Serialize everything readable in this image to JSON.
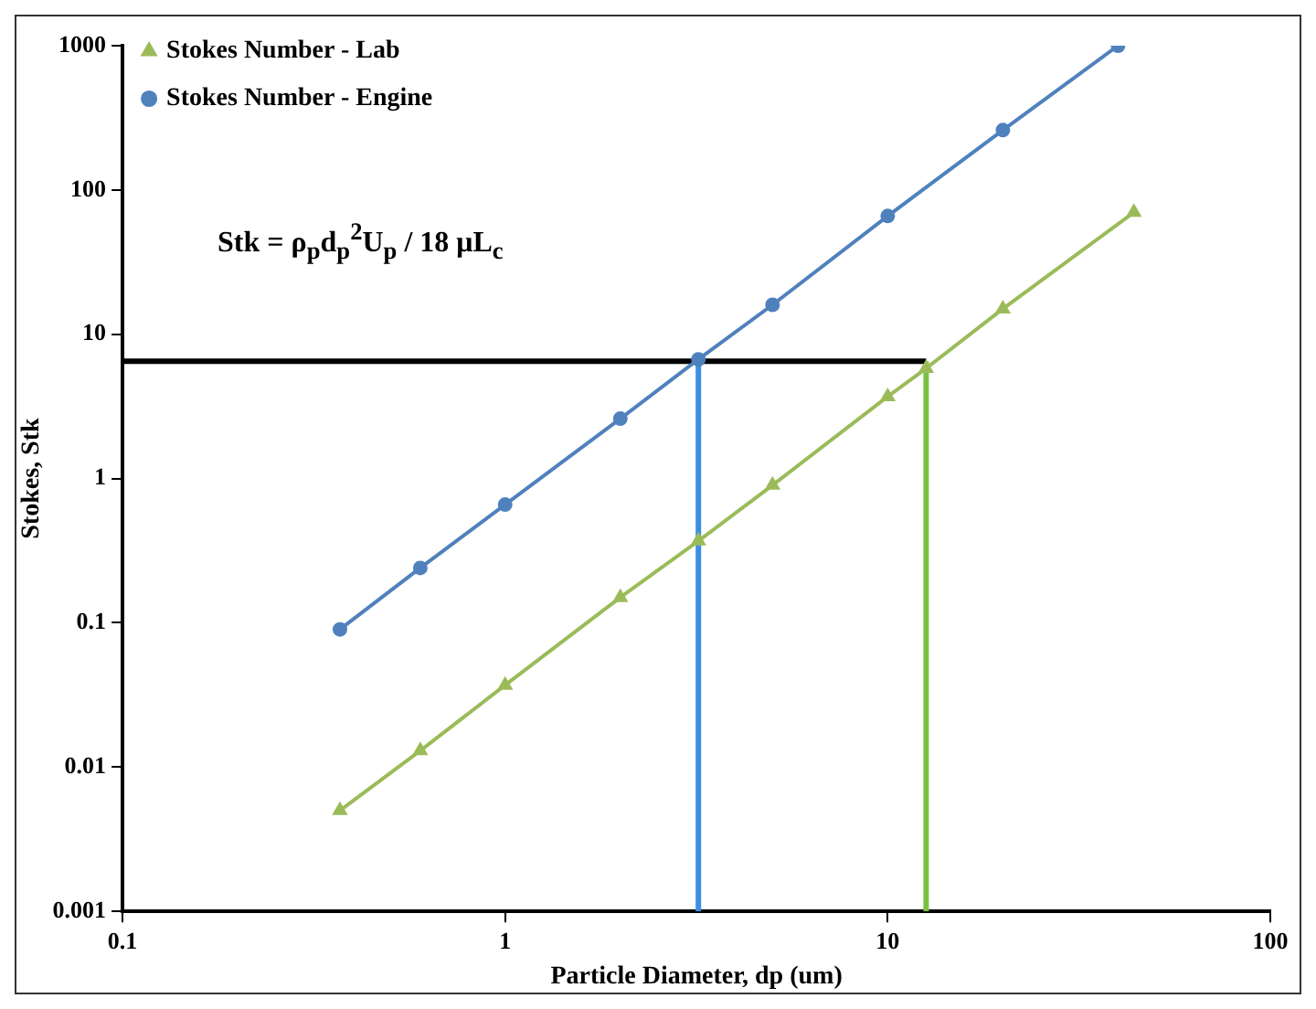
{
  "chart_data": {
    "type": "line",
    "xlabel": "Particle Diameter, dp (um)",
    "ylabel": "Stokes, Stk",
    "log": "xy",
    "grid": false,
    "legend": "top left",
    "line_style": "solid",
    "xlim": [
      0.1,
      100
    ],
    "xticks": [
      0.1,
      1,
      10,
      100
    ],
    "ylim": [
      0.001,
      1000
    ],
    "yticks": [
      0.001,
      0.01,
      0.1,
      1,
      10,
      100,
      1000
    ],
    "annotations": [
      "Stk = ρ$_{p}$d$_{p}$$^{2}$U$_{p}$ / 18 μL$_{c}$"
    ],
    "series": [
      {
        "name": "Stokes Number - Lab",
        "color": "#9bbb59",
        "marker": "triangle",
        "x": [
          0.37,
          0.6,
          1,
          2,
          3.2,
          5,
          10,
          12.6,
          20,
          44
        ],
        "values": [
          0.005,
          0.013,
          0.037,
          0.15,
          0.37,
          0.9,
          3.7,
          5.8,
          15,
          70
        ]
      },
      {
        "name": "Stokes Number - Engine",
        "color": "#4f81bd",
        "marker": "circle",
        "x": [
          0.37,
          0.6,
          1,
          2,
          3.2,
          5,
          10,
          20,
          40
        ],
        "values": [
          0.09,
          0.24,
          0.66,
          2.6,
          6.7,
          16,
          66,
          260,
          1000
        ]
      },
      {
        "color": "#000000",
        "marker": "none",
        "x": [
          0.1,
          12.6
        ],
        "values": [
          6.5,
          6.5
        ]
      },
      {
        "color": "#3c8ee6",
        "marker": "none",
        "x": [
          3.2,
          3.2
        ],
        "values": [
          0.001,
          6.5
        ]
      },
      {
        "color": "#7ac143",
        "marker": "none",
        "x": [
          12.6,
          12.6
        ],
        "values": [
          0.001,
          6.5
        ]
      }
    ]
  }
}
